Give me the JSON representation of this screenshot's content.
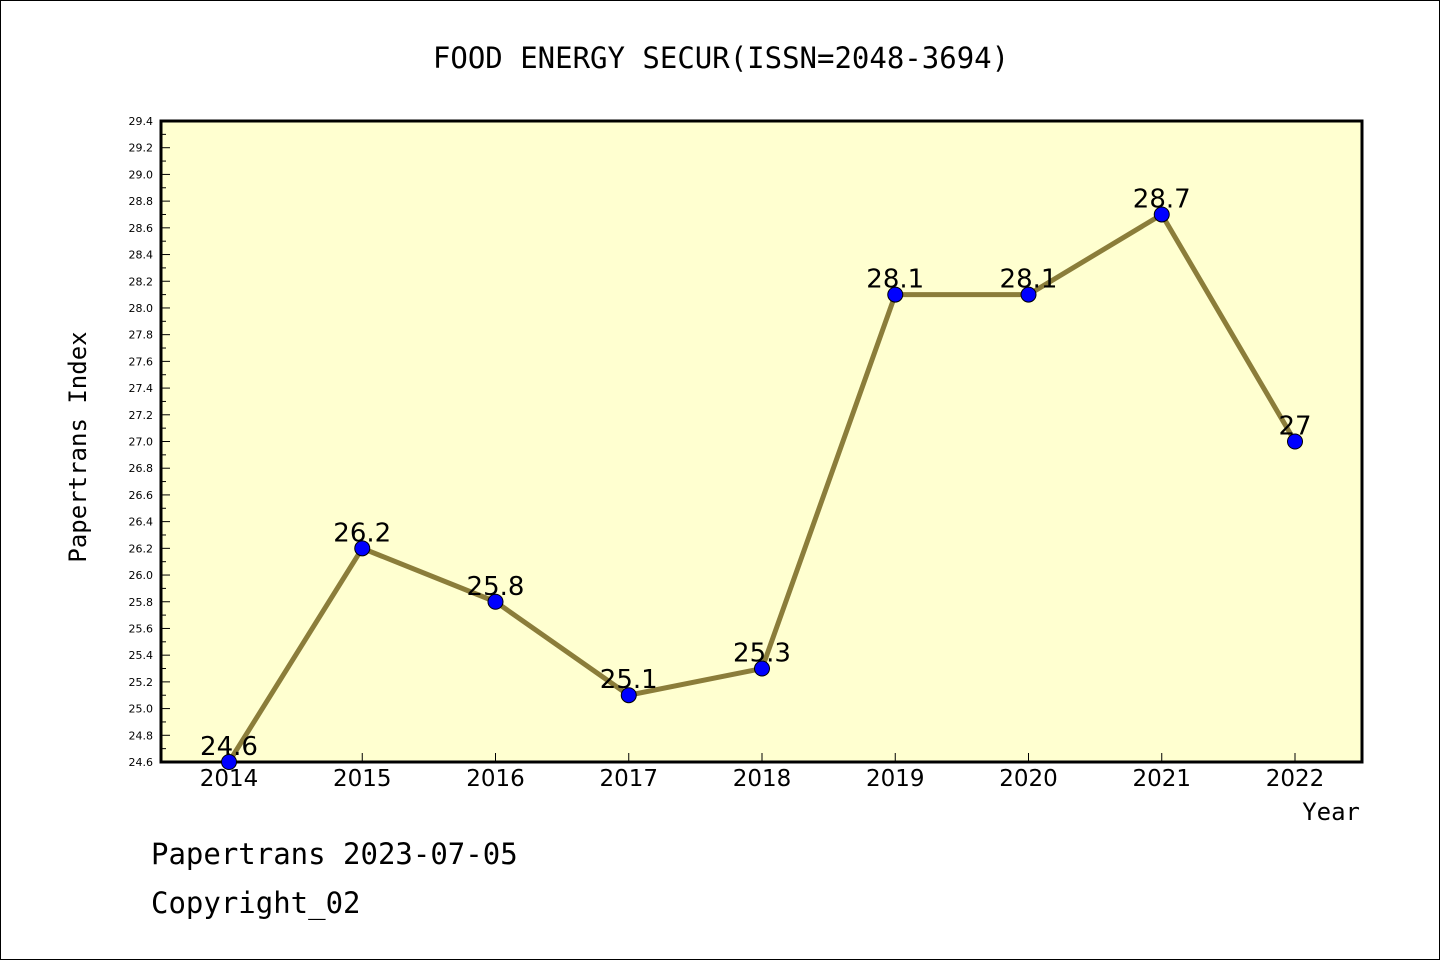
{
  "chart_data": {
    "type": "line",
    "title": "FOOD ENERGY SECUR(ISSN=2048-3694)",
    "xlabel": "Year",
    "ylabel": "Papertrans Index",
    "x": [
      "2014",
      "2015",
      "2016",
      "2017",
      "2018",
      "2019",
      "2020",
      "2021",
      "2022"
    ],
    "series": [
      {
        "values": [
          24.6,
          26.2,
          25.8,
          25.1,
          25.3,
          28.1,
          28.1,
          28.7,
          27.0
        ],
        "data_labels": [
          "24.6",
          "26.2",
          "25.8",
          "25.1",
          "25.3",
          "28.1",
          "28.1",
          "28.7",
          "27"
        ]
      }
    ],
    "ylim": [
      24.6,
      29.4
    ],
    "yticks": [
      "24.6",
      "24.8",
      "25.0",
      "25.2",
      "25.4",
      "25.6",
      "25.8",
      "26.0",
      "26.2",
      "26.4",
      "26.6",
      "26.8",
      "27.0",
      "27.2",
      "27.4",
      "27.6",
      "27.8",
      "28.0",
      "28.2",
      "28.4",
      "28.6",
      "28.8",
      "29.0",
      "29.2",
      "29.4"
    ],
    "colors": {
      "plot_bg": "#ffffd0",
      "line": "#8b7d3a",
      "marker": "#0000ff"
    },
    "grid": false
  },
  "footer": {
    "line1": "Papertrans 2023-07-05",
    "line2": "Copyright_02"
  }
}
